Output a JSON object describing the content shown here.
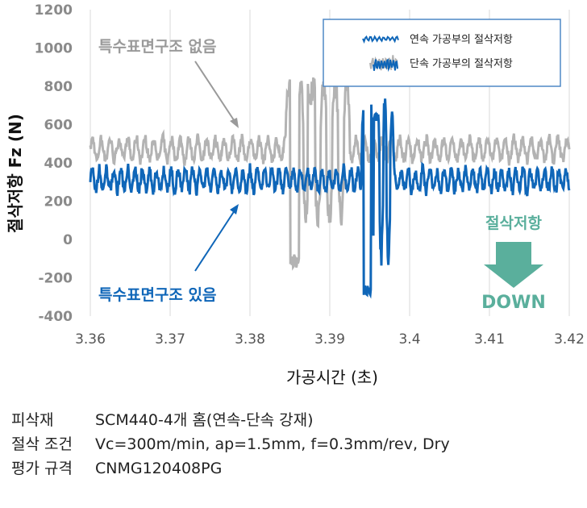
{
  "chart_data": {
    "type": "line",
    "ylabel": "절삭저항 Fz (N)",
    "xlabel": "가공시간 (초)",
    "ylim": [
      -400,
      1200
    ],
    "yticks": [
      "1200",
      "1000",
      "800",
      "600",
      "400",
      "200",
      "0",
      "-200",
      "-400"
    ],
    "xlim": [
      3.36,
      3.42
    ],
    "xticks": [
      "3.36",
      "3.37",
      "3.38",
      "3.39",
      "3.4",
      "3.41",
      "3.42"
    ],
    "grid": "vertical",
    "legend_position": "top-right",
    "series": [
      {
        "name": "연속 가공부의 절삭저항",
        "color": "#2e75b6",
        "description_points": [
          [
            3.36,
            310
          ],
          [
            3.385,
            320
          ],
          [
            3.3945,
            -320
          ],
          [
            3.3955,
            660
          ],
          [
            3.397,
            440
          ],
          [
            3.4,
            300
          ],
          [
            3.42,
            300
          ]
        ]
      },
      {
        "name": "단속 가공부의 절삭저항",
        "color": "#bdbdbd",
        "description_points": [
          [
            3.36,
            470
          ],
          [
            3.3845,
            480
          ],
          [
            3.3855,
            -190
          ],
          [
            3.3875,
            850
          ],
          [
            3.39,
            470
          ],
          [
            3.42,
            470
          ]
        ]
      }
    ],
    "annotations": {
      "gray_label": "특수표면구조 없음",
      "blue_label": "특수표면구조 있음",
      "teal_label_top": "절삭저항",
      "teal_label_bottom": "DOWN"
    },
    "colors": {
      "blue": "#0f66b8",
      "gray": "#b3b3b3",
      "teal": "#5aaf9c",
      "legend_border": "#4f88c6"
    }
  },
  "notes": [
    {
      "key": "피삭재",
      "value": "SCM440-4개 홈(연속-단속 강재)"
    },
    {
      "key": "절삭 조건",
      "value": "Vc=300m/min, ap=1.5mm, f=0.3mm/rev, Dry"
    },
    {
      "key": "평가 규격",
      "value": "CNMG120408PG"
    }
  ]
}
